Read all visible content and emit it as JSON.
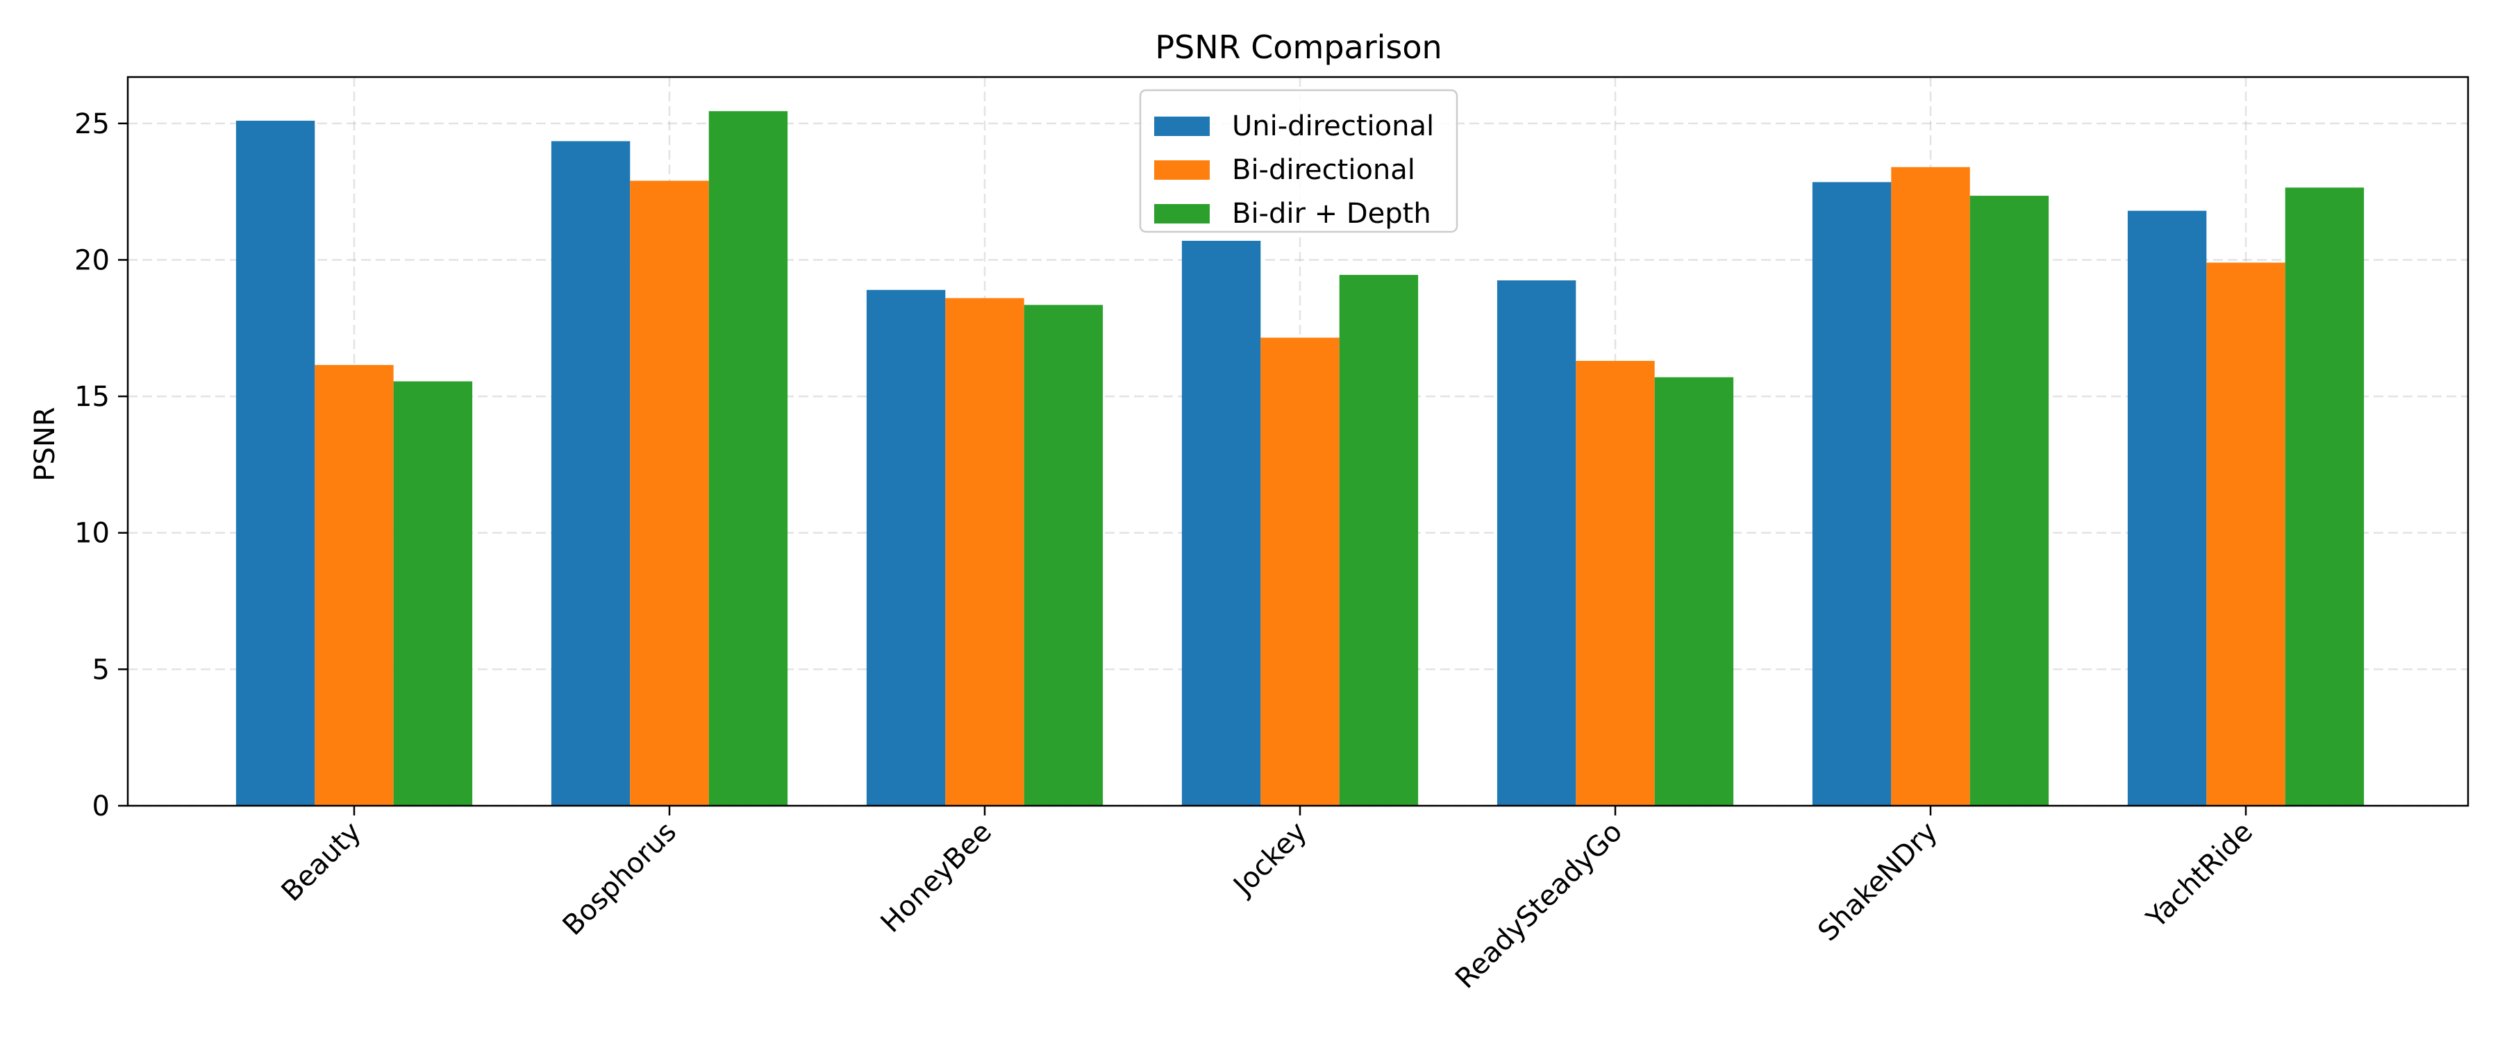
{
  "chart_data": {
    "type": "bar",
    "title": "PSNR Comparison",
    "xlabel": "",
    "ylabel": "PSNR",
    "categories": [
      "Beauty",
      "Bosphorus",
      "HoneyBee",
      "Jockey",
      "ReadySteadyGo",
      "ShakeNDry",
      "YachtRide"
    ],
    "series": [
      {
        "name": "Uni-directional",
        "color": "#1f77b4",
        "values": [
          25.1,
          24.35,
          18.9,
          20.7,
          19.25,
          22.85,
          21.8
        ]
      },
      {
        "name": "Bi-directional",
        "color": "#ff7f0e",
        "values": [
          16.15,
          22.9,
          18.6,
          17.15,
          16.3,
          23.4,
          19.9
        ]
      },
      {
        "name": "Bi-dir + Depth",
        "color": "#2ca02c",
        "values": [
          15.55,
          25.45,
          18.35,
          19.45,
          15.7,
          22.35,
          22.65
        ]
      }
    ],
    "ylim": [
      0,
      26.7
    ],
    "yticks": [
      "0",
      "5",
      "10",
      "15",
      "20",
      "25"
    ],
    "grid": true,
    "legend_position": "top-center"
  }
}
